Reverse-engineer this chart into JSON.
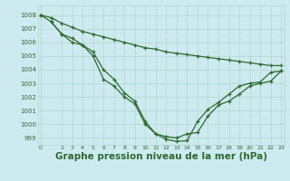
{
  "background_color": "#cdeaf0",
  "grid_color": "#b0d8cc",
  "line_color": "#2d6a2d",
  "xlabel": "Graphe pression niveau de la mer (hPa)",
  "xlabel_fontsize": 7.5,
  "ylim": [
    998.5,
    1008.7
  ],
  "xlim": [
    -0.3,
    23.3
  ],
  "yticks": [
    999,
    1000,
    1001,
    1002,
    1003,
    1004,
    1005,
    1006,
    1007,
    1008
  ],
  "xticks": [
    0,
    2,
    3,
    4,
    5,
    6,
    7,
    8,
    9,
    10,
    11,
    12,
    13,
    14,
    15,
    16,
    17,
    18,
    19,
    20,
    21,
    22,
    23
  ],
  "line1_x": [
    0,
    1,
    2,
    3,
    4,
    5,
    6,
    7,
    8,
    9,
    10,
    11,
    12,
    13,
    14,
    15,
    16,
    17,
    18,
    19,
    20,
    21,
    22,
    23
  ],
  "line1_y": [
    1008.0,
    1007.8,
    1007.4,
    1007.1,
    1006.8,
    1006.6,
    1006.4,
    1006.2,
    1006.0,
    1005.8,
    1005.6,
    1005.5,
    1005.3,
    1005.2,
    1005.1,
    1005.0,
    1004.9,
    1004.8,
    1004.7,
    1004.6,
    1004.5,
    1004.4,
    1004.3,
    1004.3
  ],
  "line2_x": [
    0,
    1,
    2,
    3,
    4,
    5,
    6,
    7,
    8,
    9,
    10,
    11,
    12,
    13,
    14,
    15,
    16,
    17,
    18,
    19,
    20,
    21,
    22,
    23
  ],
  "line2_y": [
    1008.0,
    1007.5,
    1006.6,
    1006.0,
    1005.8,
    1005.0,
    1003.3,
    1002.8,
    1002.0,
    1001.5,
    1000.0,
    999.3,
    998.9,
    998.75,
    998.8,
    1000.2,
    1001.1,
    1001.6,
    1002.2,
    1002.8,
    1003.0,
    1003.1,
    1003.8,
    1003.9
  ],
  "line3_x": [
    1,
    2,
    3,
    4,
    5,
    6,
    7,
    8,
    9,
    10,
    11,
    12,
    13,
    14,
    15,
    16,
    17,
    18,
    19,
    20,
    21,
    22,
    23
  ],
  "line3_y": [
    1007.5,
    1006.6,
    1006.3,
    1005.8,
    1005.3,
    1004.0,
    1003.3,
    1002.3,
    1001.7,
    1000.2,
    999.3,
    999.1,
    999.0,
    999.3,
    999.4,
    1000.6,
    1001.4,
    1001.7,
    1002.2,
    1002.8,
    1003.0,
    1003.15,
    1003.9
  ]
}
